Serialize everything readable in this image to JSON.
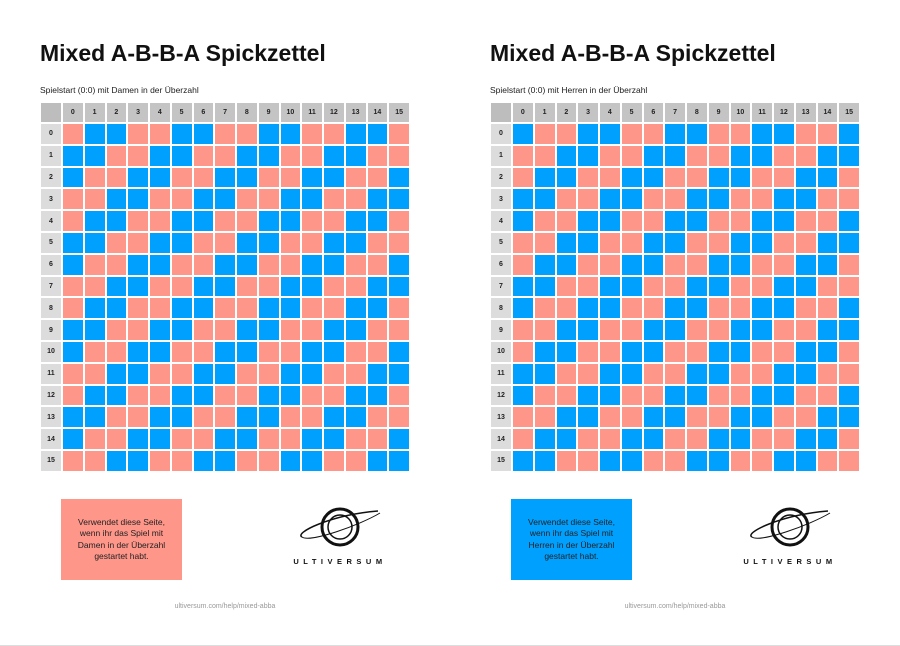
{
  "colors": {
    "A": "#ff968a",
    "B": "#00a0ff"
  },
  "pattern": "A-B-B-A",
  "axis_labels": [
    "0",
    "1",
    "2",
    "3",
    "4",
    "5",
    "6",
    "7",
    "8",
    "9",
    "10",
    "11",
    "12",
    "13",
    "14",
    "15"
  ],
  "sheets": [
    {
      "title": "Mixed A-B-B-A Spickzettel",
      "subtitle": "Spielstart (0:0) mit Damen in der Überzahl",
      "first_color": "A",
      "note": "Verwendet diese Seite, wenn ihr das Spiel mit Damen in der Überzahl gestartet habt.",
      "note_color": "#ff968a",
      "logo_text": "ULTIVERSUM",
      "url": "ultiversum.com/help/mixed-abba"
    },
    {
      "title": "Mixed A-B-B-A Spickzettel",
      "subtitle": "Spielstart (0:0) mit Herren in der Überzahl",
      "first_color": "B",
      "note": "Verwendet diese Seite, wenn ihr das Spiel mit Herren in der Überzahl gestartet habt.",
      "note_color": "#00a0ff",
      "logo_text": "ULTIVERSUM",
      "url": "ultiversum.com/help/mixed-abba"
    }
  ]
}
